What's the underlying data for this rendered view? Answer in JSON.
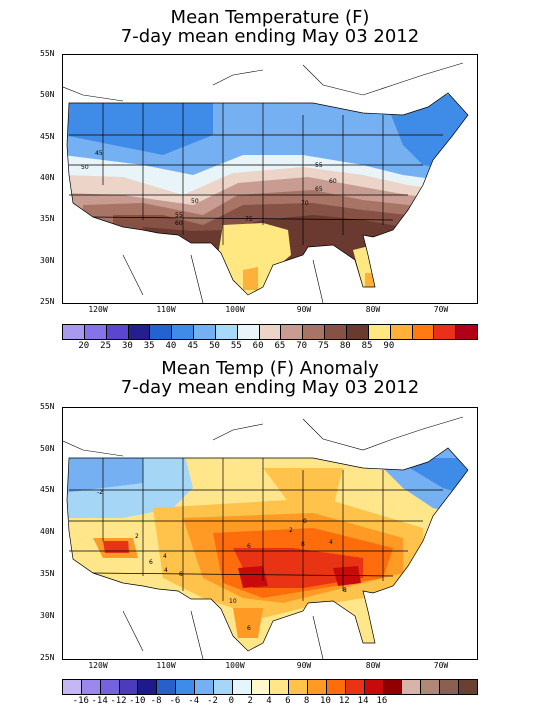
{
  "top": {
    "title_line1": "Mean Temperature (F)",
    "title_line2": "7-day mean ending May 03 2012",
    "lat_labels": [
      "55N",
      "50N",
      "45N",
      "40N",
      "35N",
      "30N",
      "25N"
    ],
    "lon_labels": [
      "120W",
      "110W",
      "100W",
      "90W",
      "80W",
      "70W"
    ],
    "colorbar": {
      "colors": [
        "#a99aee",
        "#8574e8",
        "#5b46d2",
        "#241e8e",
        "#2462cf",
        "#3f8ce8",
        "#74b0f2",
        "#a6daf8",
        "#e8f4f8",
        "#ecd4c8",
        "#c89c90",
        "#a87466",
        "#865246",
        "#6a3a30",
        "#ffe882",
        "#ffb03a",
        "#ff7a12",
        "#e8301a",
        "#b0001a"
      ],
      "labels": [
        "20",
        "25",
        "30",
        "35",
        "40",
        "45",
        "50",
        "55",
        "60",
        "65",
        "70",
        "75",
        "80",
        "85",
        "90"
      ]
    },
    "contour_labels": [
      "45",
      "50",
      "50",
      "55",
      "60",
      "65",
      "70",
      "75",
      "55",
      "60"
    ]
  },
  "bottom": {
    "title_line1": "Mean Temp (F) Anomaly",
    "title_line2": "7-day mean ending May 03 2012",
    "lat_labels": [
      "55N",
      "50N",
      "45N",
      "40N",
      "35N",
      "30N",
      "25N"
    ],
    "lon_labels": [
      "120W",
      "110W",
      "100W",
      "90W",
      "80W",
      "70W"
    ],
    "colorbar": {
      "colors": [
        "#c6b6f4",
        "#9c88ec",
        "#7463dc",
        "#4c3cbc",
        "#1e1a8a",
        "#2660c8",
        "#3f8ce8",
        "#74b0f2",
        "#a6d6f6",
        "#e4f6fc",
        "#fff8c8",
        "#ffe68a",
        "#ffc24a",
        "#ff9a24",
        "#ff6c0c",
        "#e83414",
        "#c80a0a",
        "#900000",
        "#d8b4a8",
        "#b08878",
        "#8a6050",
        "#6a4032"
      ],
      "labels": [
        "-16",
        "-14",
        "-12",
        "-10",
        "-8",
        "-6",
        "-4",
        "-2",
        "0",
        "2",
        "4",
        "6",
        "8",
        "10",
        "12",
        "14",
        "16"
      ]
    },
    "contour_labels": [
      "-2",
      "2",
      "6",
      "4",
      "4",
      "6",
      "2",
      "6",
      "8",
      "4",
      "10",
      "8",
      "6",
      "0"
    ]
  }
}
